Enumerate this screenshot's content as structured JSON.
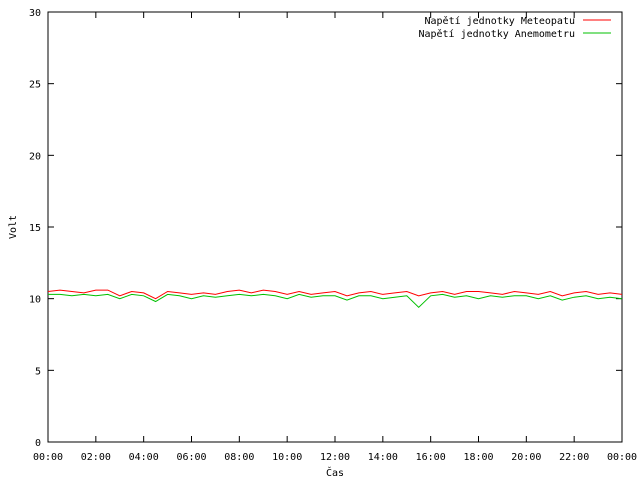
{
  "chart_data": {
    "type": "line",
    "title": "",
    "xlabel": "Čas",
    "ylabel": "Volt",
    "xlim": [
      "00:00",
      "00:00"
    ],
    "ylim": [
      0,
      30
    ],
    "x_tick_labels": [
      "00:00",
      "02:00",
      "04:00",
      "06:00",
      "08:00",
      "10:00",
      "12:00",
      "14:00",
      "16:00",
      "18:00",
      "20:00",
      "22:00",
      "00:00"
    ],
    "y_tick_labels": [
      "0",
      "5",
      "10",
      "15",
      "20",
      "25",
      "30"
    ],
    "y_ticks": [
      0,
      5,
      10,
      15,
      20,
      25,
      30
    ],
    "legend_position": "top-right",
    "grid": false,
    "x_hours": [
      0,
      0.5,
      1,
      1.5,
      2,
      2.5,
      3,
      3.5,
      4,
      4.5,
      5,
      5.5,
      6,
      6.5,
      7,
      7.5,
      8,
      8.5,
      9,
      9.5,
      10,
      10.5,
      11,
      11.5,
      12,
      12.5,
      13,
      13.5,
      14,
      14.5,
      15,
      15.5,
      16,
      16.5,
      17,
      17.5,
      18,
      18.5,
      19,
      19.5,
      20,
      20.5,
      21,
      21.5,
      22,
      22.5,
      23,
      23.5,
      24
    ],
    "series": [
      {
        "name": "Napětí jednotky Meteopatu",
        "color": "#ff0000",
        "values": [
          10.5,
          10.6,
          10.5,
          10.4,
          10.6,
          10.6,
          10.2,
          10.5,
          10.4,
          10.0,
          10.5,
          10.4,
          10.3,
          10.4,
          10.3,
          10.5,
          10.6,
          10.4,
          10.6,
          10.5,
          10.3,
          10.5,
          10.3,
          10.4,
          10.5,
          10.2,
          10.4,
          10.5,
          10.3,
          10.4,
          10.5,
          10.2,
          10.4,
          10.5,
          10.3,
          10.5,
          10.5,
          10.4,
          10.3,
          10.5,
          10.4,
          10.3,
          10.5,
          10.2,
          10.4,
          10.5,
          10.3,
          10.4,
          10.3
        ]
      },
      {
        "name": "Napětí jednotky Anemometru",
        "color": "#00c000",
        "values": [
          10.3,
          10.3,
          10.2,
          10.3,
          10.2,
          10.3,
          10.0,
          10.3,
          10.2,
          9.8,
          10.3,
          10.2,
          10.0,
          10.2,
          10.1,
          10.2,
          10.3,
          10.2,
          10.3,
          10.2,
          10.0,
          10.3,
          10.1,
          10.2,
          10.2,
          9.9,
          10.2,
          10.2,
          10.0,
          10.1,
          10.2,
          9.4,
          10.2,
          10.3,
          10.1,
          10.2,
          10.0,
          10.2,
          10.1,
          10.2,
          10.2,
          10.0,
          10.2,
          9.9,
          10.1,
          10.2,
          10.0,
          10.1,
          10.0
        ]
      }
    ]
  }
}
